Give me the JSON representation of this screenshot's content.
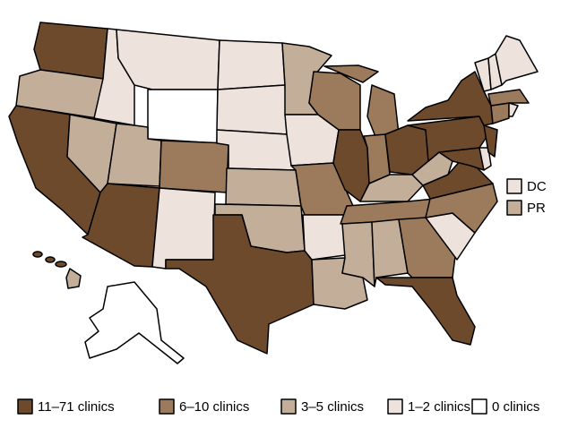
{
  "legend": [
    {
      "label": "11–71 clinics",
      "color": "#6d4a2c"
    },
    {
      "label": "6–10 clinics",
      "color": "#9c7a5c"
    },
    {
      "label": "3–5 clinics",
      "color": "#c3ae99"
    },
    {
      "label": "1–2 clinics",
      "color": "#ede3dc"
    },
    {
      "label": "0 clinics",
      "color": "#ffffff"
    }
  ],
  "insets": [
    {
      "label": "DC"
    },
    {
      "label": "PR"
    }
  ]
}
